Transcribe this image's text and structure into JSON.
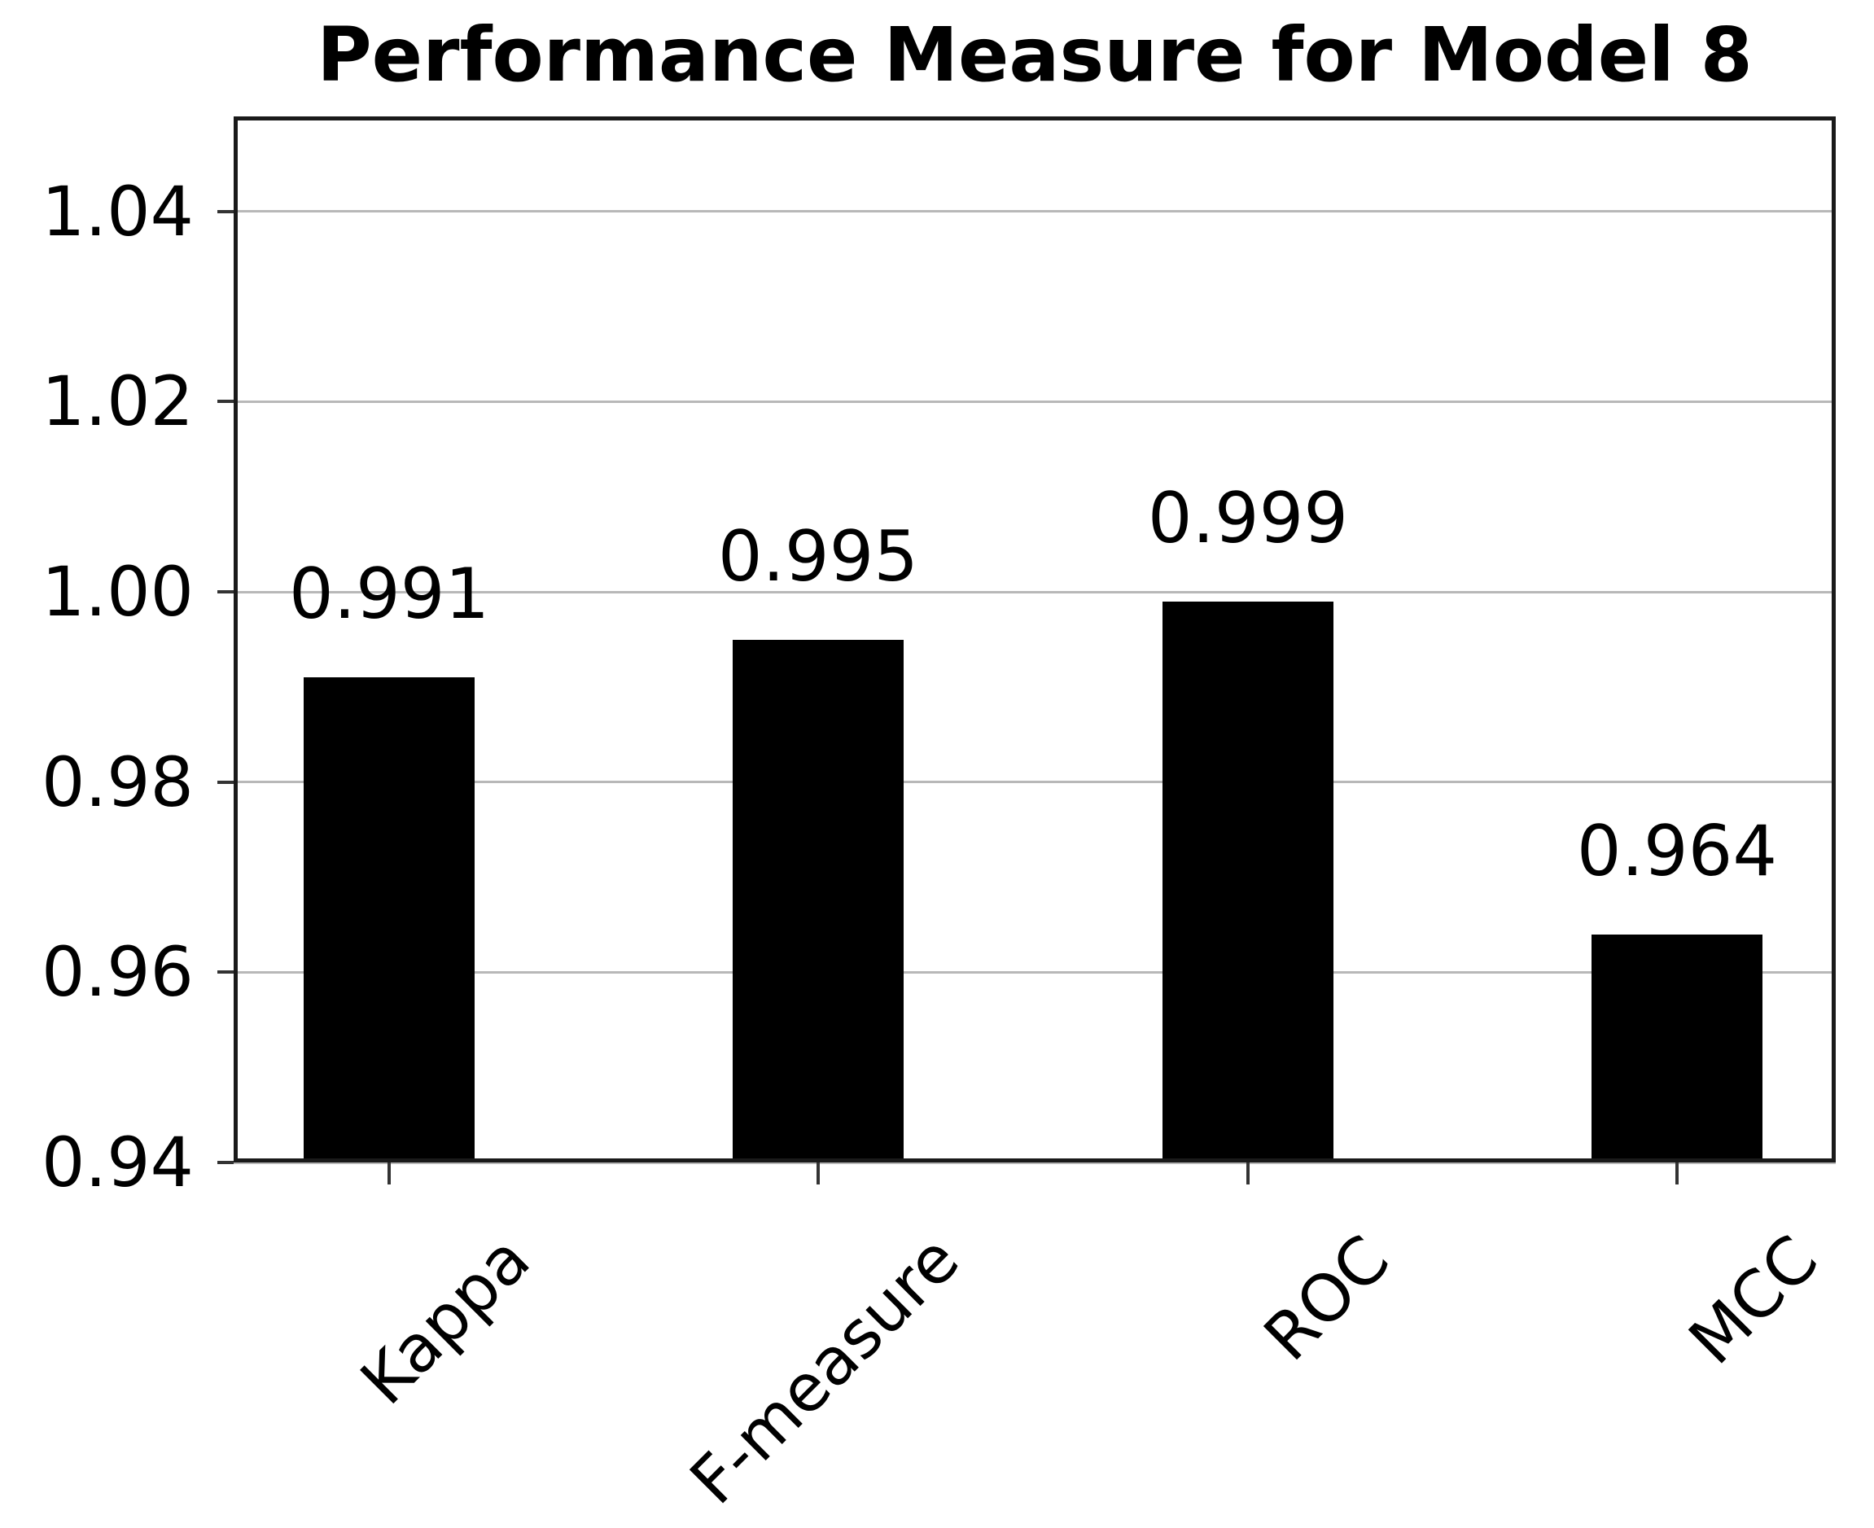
{
  "figure": {
    "background": "#ffffff"
  },
  "chart_data": {
    "type": "bar",
    "title": "Performance Measure for Model 8",
    "categories": [
      "Kappa",
      "F-measure",
      "ROC",
      "MCC"
    ],
    "values": [
      0.991,
      0.995,
      0.999,
      0.964
    ],
    "value_labels": [
      "0.991",
      "0.995",
      "0.999",
      "0.964"
    ],
    "xlabel": "",
    "ylabel": "",
    "ylim": [
      0.94,
      1.05
    ],
    "yticks": [
      0.94,
      0.96,
      0.98,
      1.0,
      1.02,
      1.04
    ],
    "ytick_labels": [
      "0.94",
      "0.96",
      "0.98",
      "1.00",
      "1.02",
      "1.04"
    ],
    "x_tick_rotation_deg": 45,
    "grid": "horizontal",
    "legend": "none",
    "bar_color": "#000000",
    "grid_color": "#b8b8b8",
    "spine_color": "#1a1a1a",
    "tick_color": "#333333",
    "text_color": "#000000"
  }
}
